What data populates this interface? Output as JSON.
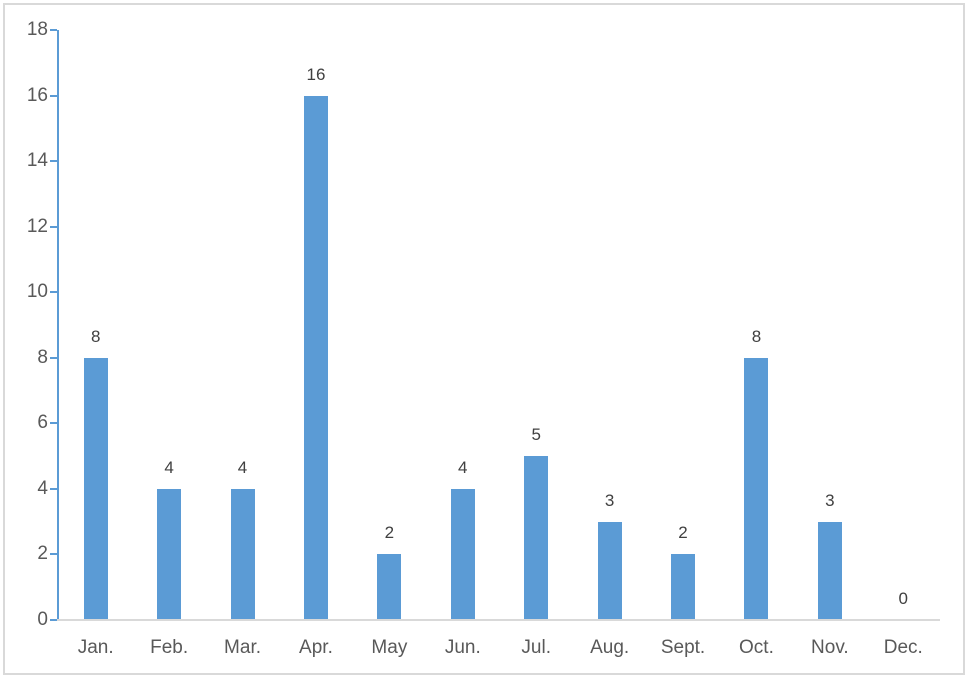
{
  "chart_data": {
    "type": "bar",
    "title": "",
    "xlabel": "",
    "ylabel": "",
    "categories": [
      "Jan.",
      "Feb.",
      "Mar.",
      "Apr.",
      "May",
      "Jun.",
      "Jul.",
      "Aug.",
      "Sept.",
      "Oct.",
      "Nov.",
      "Dec."
    ],
    "values": [
      8,
      4,
      4,
      16,
      2,
      4,
      5,
      3,
      2,
      8,
      3,
      0
    ],
    "data_labels": [
      "8",
      "4",
      "4",
      "16",
      "2",
      "4",
      "5",
      "3",
      "2",
      "8",
      "3",
      "0"
    ],
    "ylim": [
      0,
      18
    ],
    "yticks": [
      0,
      2,
      4,
      6,
      8,
      10,
      12,
      14,
      16,
      18
    ],
    "grid": false,
    "legend": "none",
    "colors": {
      "bar": "#5b9bd5",
      "y_axis_line": "#5b9bd5",
      "x_axis_line": "#d9d9d9",
      "tick_label": "#595959",
      "data_label": "#404040",
      "frame_border": "#d9d9d9",
      "background": "#ffffff"
    }
  }
}
